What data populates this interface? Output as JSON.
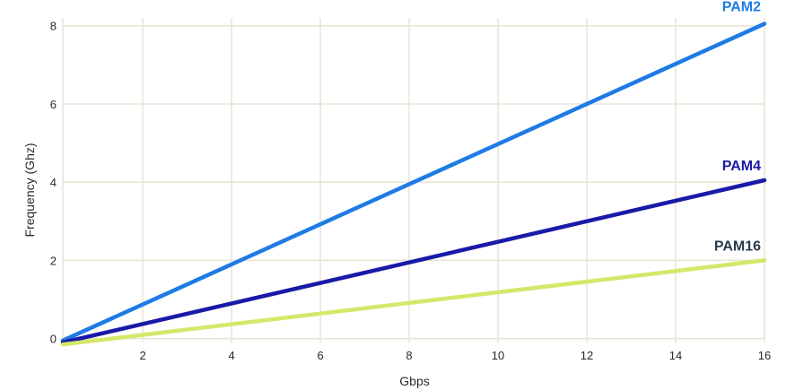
{
  "chart_data": {
    "type": "line",
    "title": "",
    "xlabel": "Gbps",
    "ylabel": "Frequency (Ghz)",
    "xlim": [
      0.2,
      16
    ],
    "ylim": [
      -0.1,
      8.2
    ],
    "x_ticks": [
      2,
      4,
      6,
      8,
      10,
      12,
      14,
      16
    ],
    "y_ticks": [
      0,
      2,
      4,
      6,
      8
    ],
    "grid": true,
    "legend": "inline labels at right end of lines",
    "series": [
      {
        "name": "PAM2",
        "color": "#1e7be6",
        "label_color": "#1e7be6",
        "x": [
          0.2,
          16
        ],
        "y": [
          -0.05,
          8.05
        ]
      },
      {
        "name": "PAM4",
        "color": "#1a1aa8",
        "label_color": "#1a1aa8",
        "x": [
          0.2,
          16
        ],
        "y": [
          -0.1,
          4.05
        ]
      },
      {
        "name": "PAM16",
        "color": "#d4e86a",
        "label_color": "#2a3a4a",
        "x": [
          0.2,
          16
        ],
        "y": [
          -0.15,
          2.0
        ]
      }
    ]
  }
}
